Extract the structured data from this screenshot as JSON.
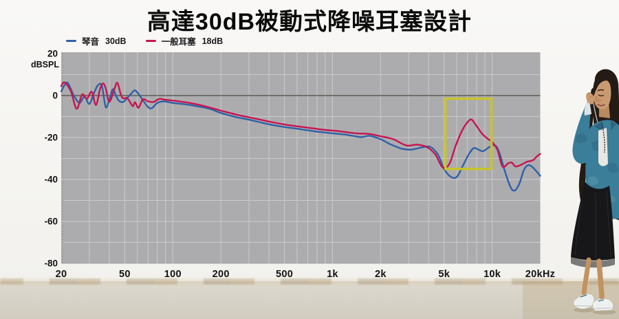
{
  "title": "高達30dB被動式降噪耳塞設計",
  "legend": {
    "items": [
      {
        "label": "琴音",
        "value": "30dB",
        "color": "#2f60a6"
      },
      {
        "label": "一般耳塞",
        "value": "18dB",
        "color": "#c8134f"
      }
    ]
  },
  "chart_data": {
    "type": "line",
    "title": "高達30dB被動式降噪耳塞設計",
    "x_axis": {
      "scale": "log",
      "min": 20,
      "max": 20000,
      "ticks": [
        [
          20,
          "20"
        ],
        [
          50,
          "50"
        ],
        [
          100,
          "100"
        ],
        [
          200,
          "200"
        ],
        [
          500,
          "500"
        ],
        [
          1000,
          "1k"
        ],
        [
          2000,
          "2k"
        ],
        [
          5000,
          "5k"
        ],
        [
          10000,
          "10k"
        ],
        [
          20000,
          "20kHz"
        ]
      ]
    },
    "y_axis": {
      "unit_label": "dBSPL",
      "min": -80,
      "max": 20,
      "ticks": [
        [
          20,
          "20"
        ],
        [
          0,
          "0"
        ],
        [
          -20,
          "-20"
        ],
        [
          -40,
          "-40"
        ],
        [
          -60,
          "-60"
        ],
        [
          -80,
          "-80"
        ]
      ],
      "grid_step": 10
    },
    "zero_line": 0,
    "highlight_box": {
      "f_min": 5100,
      "f_max": 9900,
      "db_min": -35,
      "db_max": -1.5,
      "color": "#c6c32d"
    },
    "colors": {
      "plot_bg": "#acacae",
      "grid": "#cbcbcd",
      "zero_line": "#4e4a46",
      "axis_text": "#131313",
      "ruler_tick": "#9b9b9d"
    },
    "series": [
      {
        "name": "琴音 30dB",
        "color": "#2f60a6",
        "points": [
          [
            20,
            2
          ],
          [
            21,
            5
          ],
          [
            22,
            6
          ],
          [
            24,
            0
          ],
          [
            26,
            -3.5
          ],
          [
            28,
            -0.5
          ],
          [
            30,
            -4
          ],
          [
            32,
            1
          ],
          [
            34,
            5
          ],
          [
            36,
            4.5
          ],
          [
            38,
            -5.5
          ],
          [
            40,
            -2
          ],
          [
            42,
            3
          ],
          [
            44,
            0
          ],
          [
            46,
            -2.5
          ],
          [
            49,
            -3
          ],
          [
            52,
            -1
          ],
          [
            55,
            1
          ],
          [
            58,
            2.5
          ],
          [
            62,
            0
          ],
          [
            66,
            -3
          ],
          [
            70,
            -5.5
          ],
          [
            74,
            -6
          ],
          [
            80,
            -3.5
          ],
          [
            88,
            -2.8
          ],
          [
            100,
            -3.5
          ],
          [
            120,
            -4.2
          ],
          [
            140,
            -5
          ],
          [
            170,
            -6.3
          ],
          [
            200,
            -8.3
          ],
          [
            250,
            -10.3
          ],
          [
            300,
            -11.5
          ],
          [
            400,
            -13.7
          ],
          [
            500,
            -15
          ],
          [
            600,
            -15.8
          ],
          [
            700,
            -16.6
          ],
          [
            800,
            -17.2
          ],
          [
            1000,
            -18
          ],
          [
            1200,
            -18.6
          ],
          [
            1500,
            -19.8
          ],
          [
            1700,
            -19.2
          ],
          [
            2000,
            -20.8
          ],
          [
            2300,
            -23.2
          ],
          [
            2700,
            -25.3
          ],
          [
            3100,
            -25.8
          ],
          [
            3600,
            -24.8
          ],
          [
            4100,
            -24.5
          ],
          [
            4600,
            -28.5
          ],
          [
            5000,
            -35
          ],
          [
            5500,
            -38.7
          ],
          [
            6000,
            -38.8
          ],
          [
            6600,
            -33
          ],
          [
            7200,
            -27.5
          ],
          [
            7700,
            -25
          ],
          [
            8300,
            -26
          ],
          [
            8800,
            -26.5
          ],
          [
            9500,
            -24.8
          ],
          [
            10300,
            -23.6
          ],
          [
            11000,
            -26.5
          ],
          [
            12000,
            -36
          ],
          [
            13000,
            -43.5
          ],
          [
            13800,
            -45.3
          ],
          [
            14800,
            -42
          ],
          [
            15800,
            -35.5
          ],
          [
            16800,
            -33.2
          ],
          [
            17800,
            -34
          ],
          [
            19000,
            -36.3
          ],
          [
            20000,
            -38.3
          ]
        ]
      },
      {
        "name": "一般耳塞 18dB",
        "color": "#c8134f",
        "points": [
          [
            20,
            4.5
          ],
          [
            21,
            6.3
          ],
          [
            23,
            2
          ],
          [
            25,
            -6.3
          ],
          [
            27,
            0.5
          ],
          [
            29,
            -1.5
          ],
          [
            31,
            1.8
          ],
          [
            33,
            -4.5
          ],
          [
            35,
            3
          ],
          [
            36.5,
            5.8
          ],
          [
            38,
            3.5
          ],
          [
            40,
            -3
          ],
          [
            43,
            3
          ],
          [
            45,
            6
          ],
          [
            48,
            -0.8
          ],
          [
            52,
            -1.3
          ],
          [
            56,
            -5
          ],
          [
            58,
            -3.2
          ],
          [
            61,
            -5.8
          ],
          [
            65,
            -1.8
          ],
          [
            70,
            -2.8
          ],
          [
            76,
            -3
          ],
          [
            82,
            -1.6
          ],
          [
            90,
            -2
          ],
          [
            105,
            -2.6
          ],
          [
            125,
            -3.4
          ],
          [
            150,
            -4.6
          ],
          [
            180,
            -6.2
          ],
          [
            210,
            -7.6
          ],
          [
            260,
            -9.4
          ],
          [
            320,
            -10.8
          ],
          [
            400,
            -12.4
          ],
          [
            500,
            -13.8
          ],
          [
            620,
            -14.8
          ],
          [
            750,
            -15.6
          ],
          [
            900,
            -16.4
          ],
          [
            1100,
            -17
          ],
          [
            1400,
            -18
          ],
          [
            1700,
            -18.3
          ],
          [
            2000,
            -19.4
          ],
          [
            2400,
            -20.8
          ],
          [
            2900,
            -23.8
          ],
          [
            3400,
            -23.4
          ],
          [
            3900,
            -24.6
          ],
          [
            4400,
            -28
          ],
          [
            4900,
            -34.3
          ],
          [
            5400,
            -32.5
          ],
          [
            5900,
            -24
          ],
          [
            6500,
            -16.5
          ],
          [
            7000,
            -12.8
          ],
          [
            7400,
            -11.4
          ],
          [
            7900,
            -14
          ],
          [
            8600,
            -18
          ],
          [
            9300,
            -20.4
          ],
          [
            10000,
            -22.2
          ],
          [
            10800,
            -26
          ],
          [
            11600,
            -33.8
          ],
          [
            12600,
            -32.3
          ],
          [
            13300,
            -32
          ],
          [
            14000,
            -33.8
          ],
          [
            15200,
            -33
          ],
          [
            16500,
            -31.6
          ],
          [
            18000,
            -30.8
          ],
          [
            19200,
            -28.8
          ],
          [
            20000,
            -27.8
          ]
        ]
      }
    ]
  },
  "photo_palette": {
    "denim": "#3b7e99",
    "denim_dark": "#2c6480",
    "denim_light": "#5d97ad",
    "skin": "#c99a71",
    "skin_leg": "#c2925f",
    "hair": "#241b15",
    "dress": "#17171a",
    "shoe": "#edf0f0",
    "shadow": "#9f9277"
  }
}
